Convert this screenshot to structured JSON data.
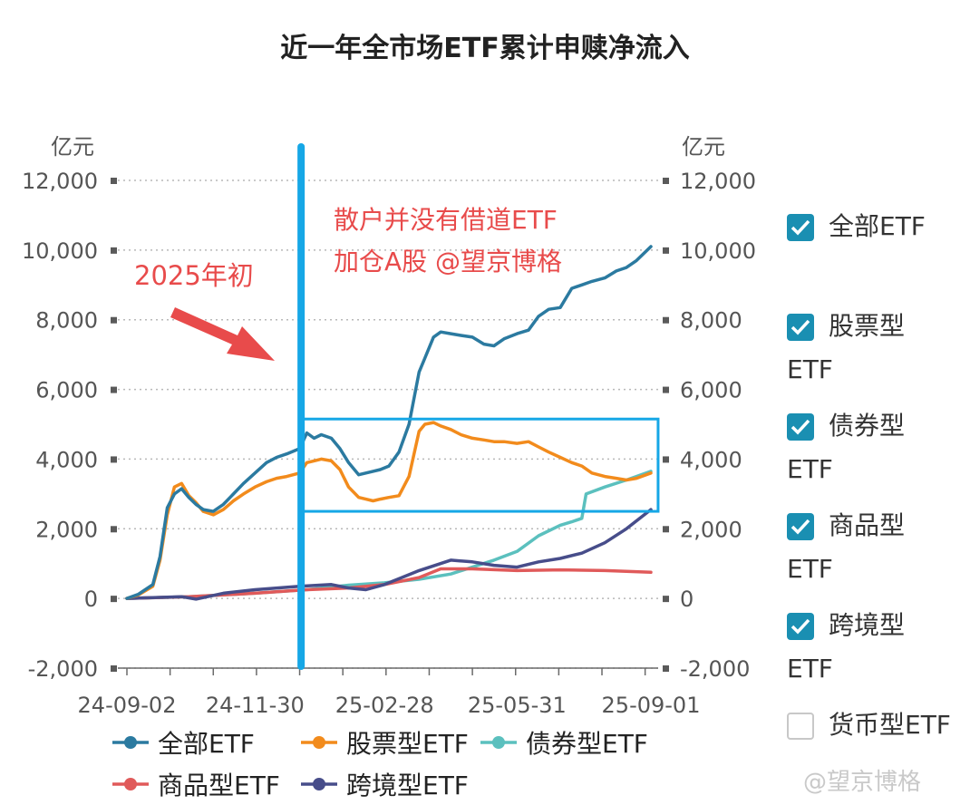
{
  "title": "近一年全市场ETF累计申赎净流入",
  "chart_data": {
    "type": "line",
    "title": "近一年全市场ETF累计申赎净流入",
    "y_unit_left": "亿元",
    "y_unit_right": "亿元",
    "ylim": [
      -2000,
      12000
    ],
    "yticks": [
      -2000,
      0,
      2000,
      4000,
      6000,
      8000,
      10000,
      12000
    ],
    "ytick_labels": [
      "-2,000",
      "0",
      "2,000",
      "4,000",
      "6,000",
      "8,000",
      "10,000",
      "12,000"
    ],
    "xlim": [
      "2024-09-02",
      "2025-09-01"
    ],
    "xticks": [
      {
        "date": "2024-09-02",
        "label": "24-09-02"
      },
      {
        "date": "2024-11-30",
        "label": "24-11-30"
      },
      {
        "date": "2025-02-28",
        "label": "25-02-28"
      },
      {
        "date": "2025-05-31",
        "label": "25-05-31"
      },
      {
        "date": "2025-09-01",
        "label": "25-09-01"
      }
    ],
    "grid": "horizontal dotted",
    "legend_position": "bottom",
    "series": [
      {
        "name": "全部ETF",
        "color": "#2b7aa0",
        "points": [
          [
            "2024-09-02",
            0
          ],
          [
            "2024-09-10",
            120
          ],
          [
            "2024-09-20",
            400
          ],
          [
            "2024-09-25",
            1200
          ],
          [
            "2024-09-30",
            2600
          ],
          [
            "2024-10-05",
            3000
          ],
          [
            "2024-10-10",
            3150
          ],
          [
            "2024-10-15",
            2900
          ],
          [
            "2024-10-20",
            2700
          ],
          [
            "2024-10-25",
            2550
          ],
          [
            "2024-11-01",
            2500
          ],
          [
            "2024-11-08",
            2700
          ],
          [
            "2024-11-15",
            3000
          ],
          [
            "2024-11-22",
            3300
          ],
          [
            "2024-11-30",
            3600
          ],
          [
            "2024-12-08",
            3900
          ],
          [
            "2024-12-15",
            4050
          ],
          [
            "2024-12-22",
            4150
          ],
          [
            "2024-12-31",
            4300
          ],
          [
            "2025-01-05",
            4750
          ],
          [
            "2025-01-10",
            4600
          ],
          [
            "2025-01-15",
            4700
          ],
          [
            "2025-01-22",
            4600
          ],
          [
            "2025-01-28",
            4300
          ],
          [
            "2025-02-03",
            3900
          ],
          [
            "2025-02-10",
            3550
          ],
          [
            "2025-02-15",
            3600
          ],
          [
            "2025-02-20",
            3650
          ],
          [
            "2025-02-25",
            3700
          ],
          [
            "2025-03-03",
            3800
          ],
          [
            "2025-03-10",
            4200
          ],
          [
            "2025-03-17",
            5000
          ],
          [
            "2025-03-24",
            6500
          ],
          [
            "2025-03-28",
            6900
          ],
          [
            "2025-04-03",
            7500
          ],
          [
            "2025-04-08",
            7650
          ],
          [
            "2025-04-15",
            7600
          ],
          [
            "2025-04-22",
            7550
          ],
          [
            "2025-04-30",
            7500
          ],
          [
            "2025-05-08",
            7300
          ],
          [
            "2025-05-15",
            7250
          ],
          [
            "2025-05-22",
            7450
          ],
          [
            "2025-05-31",
            7600
          ],
          [
            "2025-06-08",
            7700
          ],
          [
            "2025-06-15",
            8100
          ],
          [
            "2025-06-22",
            8300
          ],
          [
            "2025-06-30",
            8350
          ],
          [
            "2025-07-08",
            8900
          ],
          [
            "2025-07-15",
            9000
          ],
          [
            "2025-07-22",
            9100
          ],
          [
            "2025-07-31",
            9200
          ],
          [
            "2025-08-08",
            9400
          ],
          [
            "2025-08-15",
            9500
          ],
          [
            "2025-08-22",
            9700
          ],
          [
            "2025-09-01",
            10100
          ]
        ]
      },
      {
        "name": "股票型ETF",
        "color": "#f28b1c",
        "points": [
          [
            "2024-09-02",
            0
          ],
          [
            "2024-09-10",
            100
          ],
          [
            "2024-09-20",
            350
          ],
          [
            "2024-09-25",
            1100
          ],
          [
            "2024-09-30",
            2400
          ],
          [
            "2024-10-05",
            3200
          ],
          [
            "2024-10-10",
            3300
          ],
          [
            "2024-10-15",
            2950
          ],
          [
            "2024-10-20",
            2750
          ],
          [
            "2024-10-25",
            2500
          ],
          [
            "2024-11-01",
            2400
          ],
          [
            "2024-11-08",
            2550
          ],
          [
            "2024-11-15",
            2800
          ],
          [
            "2024-11-22",
            3000
          ],
          [
            "2024-11-30",
            3200
          ],
          [
            "2024-12-08",
            3350
          ],
          [
            "2024-12-15",
            3450
          ],
          [
            "2024-12-22",
            3500
          ],
          [
            "2024-12-31",
            3600
          ],
          [
            "2025-01-05",
            3900
          ],
          [
            "2025-01-10",
            3950
          ],
          [
            "2025-01-15",
            4000
          ],
          [
            "2025-01-22",
            3950
          ],
          [
            "2025-01-28",
            3700
          ],
          [
            "2025-02-03",
            3200
          ],
          [
            "2025-02-10",
            2900
          ],
          [
            "2025-02-15",
            2850
          ],
          [
            "2025-02-20",
            2800
          ],
          [
            "2025-02-25",
            2850
          ],
          [
            "2025-03-03",
            2900
          ],
          [
            "2025-03-10",
            2950
          ],
          [
            "2025-03-17",
            3500
          ],
          [
            "2025-03-24",
            4800
          ],
          [
            "2025-03-28",
            5000
          ],
          [
            "2025-04-03",
            5050
          ],
          [
            "2025-04-08",
            4950
          ],
          [
            "2025-04-15",
            4850
          ],
          [
            "2025-04-22",
            4700
          ],
          [
            "2025-04-30",
            4600
          ],
          [
            "2025-05-08",
            4550
          ],
          [
            "2025-05-15",
            4500
          ],
          [
            "2025-05-22",
            4500
          ],
          [
            "2025-05-31",
            4450
          ],
          [
            "2025-06-08",
            4500
          ],
          [
            "2025-06-15",
            4350
          ],
          [
            "2025-06-22",
            4200
          ],
          [
            "2025-06-30",
            4050
          ],
          [
            "2025-07-08",
            3900
          ],
          [
            "2025-07-15",
            3800
          ],
          [
            "2025-07-22",
            3600
          ],
          [
            "2025-07-31",
            3500
          ],
          [
            "2025-08-08",
            3450
          ],
          [
            "2025-08-15",
            3400
          ],
          [
            "2025-08-22",
            3450
          ],
          [
            "2025-09-01",
            3600
          ]
        ]
      },
      {
        "name": "债券型ETF",
        "color": "#5bc0be",
        "points": [
          [
            "2024-09-02",
            0
          ],
          [
            "2024-10-15",
            50
          ],
          [
            "2024-11-30",
            150
          ],
          [
            "2025-01-05",
            250
          ],
          [
            "2025-02-03",
            380
          ],
          [
            "2025-02-28",
            450
          ],
          [
            "2025-03-24",
            550
          ],
          [
            "2025-04-15",
            700
          ],
          [
            "2025-04-30",
            900
          ],
          [
            "2025-05-15",
            1100
          ],
          [
            "2025-05-31",
            1350
          ],
          [
            "2025-06-15",
            1800
          ],
          [
            "2025-06-30",
            2100
          ],
          [
            "2025-07-08",
            2200
          ],
          [
            "2025-07-15",
            2300
          ],
          [
            "2025-07-18",
            3000
          ],
          [
            "2025-07-31",
            3200
          ],
          [
            "2025-08-15",
            3400
          ],
          [
            "2025-09-01",
            3650
          ]
        ]
      },
      {
        "name": "商品型ETF",
        "color": "#e05a5a",
        "points": [
          [
            "2024-09-02",
            0
          ],
          [
            "2024-10-15",
            50
          ],
          [
            "2024-11-30",
            150
          ],
          [
            "2025-01-05",
            250
          ],
          [
            "2025-02-03",
            300
          ],
          [
            "2025-02-28",
            400
          ],
          [
            "2025-03-24",
            600
          ],
          [
            "2025-04-08",
            850
          ],
          [
            "2025-04-30",
            850
          ],
          [
            "2025-05-31",
            800
          ],
          [
            "2025-06-30",
            820
          ],
          [
            "2025-07-31",
            800
          ],
          [
            "2025-09-01",
            750
          ]
        ]
      },
      {
        "name": "跨境型ETF",
        "color": "#474d8a",
        "points": [
          [
            "2024-09-02",
            0
          ],
          [
            "2024-10-10",
            50
          ],
          [
            "2024-10-20",
            -20
          ],
          [
            "2024-11-08",
            150
          ],
          [
            "2024-11-30",
            250
          ],
          [
            "2024-12-31",
            350
          ],
          [
            "2025-01-22",
            400
          ],
          [
            "2025-02-03",
            300
          ],
          [
            "2025-02-15",
            250
          ],
          [
            "2025-02-28",
            400
          ],
          [
            "2025-03-24",
            800
          ],
          [
            "2025-04-15",
            1100
          ],
          [
            "2025-04-30",
            1050
          ],
          [
            "2025-05-15",
            950
          ],
          [
            "2025-05-31",
            900
          ],
          [
            "2025-06-15",
            1050
          ],
          [
            "2025-06-30",
            1150
          ],
          [
            "2025-07-15",
            1300
          ],
          [
            "2025-07-31",
            1600
          ],
          [
            "2025-08-15",
            2000
          ],
          [
            "2025-09-01",
            2550
          ]
        ]
      }
    ],
    "annotations": {
      "text_1": "散户并没有借道ETF",
      "text_2": "加仓A股 @望京博格",
      "label_2025": "2025年初",
      "vline_date": "2025-01-01",
      "box": {
        "x0": "2025-01-01",
        "x1": "2025-09-06",
        "y0": 2500,
        "y1": 5150
      }
    }
  },
  "side_legend": [
    {
      "line1": "全部ETF",
      "line2": "",
      "checked": true
    },
    {
      "line1": "股票型",
      "line2": "ETF",
      "checked": true
    },
    {
      "line1": "债券型",
      "line2": "ETF",
      "checked": true
    },
    {
      "line1": "商品型",
      "line2": "ETF",
      "checked": true
    },
    {
      "line1": "跨境型",
      "line2": "ETF",
      "checked": true
    },
    {
      "line1": "货币型ETF",
      "line2": "",
      "checked": false
    }
  ],
  "bottom_legend": [
    {
      "name": "全部ETF",
      "color": "#2b7aa0"
    },
    {
      "name": "股票型ETF",
      "color": "#f28b1c"
    },
    {
      "name": "债券型ETF",
      "color": "#5bc0be"
    },
    {
      "name": "商品型ETF",
      "color": "#e05a5a"
    },
    {
      "name": "跨境型ETF",
      "color": "#474d8a"
    }
  ],
  "watermark": "@望京博格",
  "colors": {
    "checkbox": "#1a8fb2",
    "annotation_red": "#e84b4b",
    "annotation_blue": "#16a7e6",
    "axis_tick": "#5a5a5a"
  }
}
